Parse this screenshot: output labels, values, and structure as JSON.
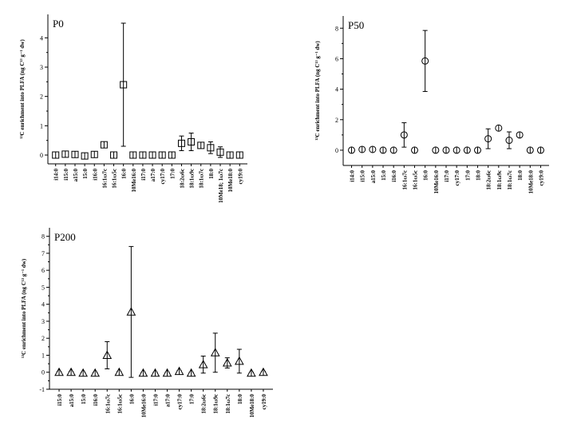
{
  "chart_data": [
    {
      "type": "scatter",
      "title": "P0",
      "marker": "square",
      "ylabel": "¹³C enrichment into PLFA (ng C¹³ g⁻¹ dw)",
      "ylim": [
        -0.3,
        4.8
      ],
      "yticks": [
        0,
        1,
        2,
        3,
        4
      ],
      "categories": [
        "i14:0",
        "i15:0",
        "a15:0",
        "15:0",
        "i16:0",
        "16:1ω7c",
        "16:1ω5c",
        "16:0",
        "10Me16:0",
        "i17:0",
        "a17:0",
        "cy17:0",
        "17:0",
        "18:2ω6c",
        "18:1ω9c",
        "18:1ω7c",
        "18:0",
        "10Me18; 1ω7c",
        "10Me18:0",
        "cy19:0"
      ],
      "values": [
        0.0,
        0.03,
        0.02,
        -0.03,
        0.02,
        0.35,
        0.0,
        2.4,
        0.0,
        0.0,
        0.0,
        0.0,
        0.0,
        0.4,
        0.45,
        0.33,
        0.25,
        0.1,
        0.0,
        0.0
      ],
      "errors": [
        0.03,
        0.04,
        0.04,
        0.03,
        0.04,
        0.1,
        0.02,
        2.1,
        0.02,
        0.02,
        0.02,
        0.02,
        0.02,
        0.25,
        0.3,
        0.1,
        0.2,
        0.18,
        0.03,
        0.03
      ]
    },
    {
      "type": "scatter",
      "title": "P50",
      "marker": "circle",
      "ylabel": "¹³C enrichment into PLFA (ng C¹³ g⁻¹ dw)",
      "ylim": [
        -1,
        8.8
      ],
      "yticks": [
        0,
        2,
        4,
        6,
        8
      ],
      "categories": [
        "i14:0",
        "i15:0",
        "a15:0",
        "15:0",
        "i16:0",
        "16:1ω7c",
        "16:1ω5c",
        "16:0",
        "10Me16:0",
        "i17:0",
        "cy17:0",
        "17:0",
        "18:0",
        "18:2ω6c",
        "18:1ω9c",
        "18:1ω7c",
        "18:0",
        "10Me18:0",
        "cy19:0"
      ],
      "values": [
        0.0,
        0.05,
        0.05,
        0.0,
        0.0,
        1.0,
        0.0,
        5.85,
        0.0,
        0.0,
        0.0,
        0.0,
        0.0,
        0.75,
        1.45,
        0.65,
        1.0,
        0.0,
        0.0
      ],
      "errors": [
        0.05,
        0.08,
        0.08,
        0.05,
        0.05,
        0.8,
        0.05,
        2.0,
        0.05,
        0.05,
        0.05,
        0.05,
        0.05,
        0.65,
        0.12,
        0.55,
        0.1,
        0.05,
        0.05
      ]
    },
    {
      "type": "scatter",
      "title": "P200",
      "marker": "triangle",
      "ylabel": "¹³C enrichment into PLFA (ng C¹³ g⁻¹ dw)",
      "ylim": [
        -1,
        8.5
      ],
      "yticks": [
        -1,
        0,
        1,
        2,
        3,
        4,
        5,
        6,
        7,
        8
      ],
      "categories": [
        "i15:0",
        "a15:0",
        "15:0",
        "i16:0",
        "16:1ω7c",
        "16:1ω5c",
        "16:0",
        "10Me16:0",
        "i17:0",
        "a17:0",
        "cy17:0",
        "17:0",
        "18:2ω6c",
        "18:1ω9c",
        "18:1ω7c",
        "18:0",
        "10Me18:0",
        "cy19:0"
      ],
      "values": [
        0.0,
        0.0,
        -0.05,
        -0.05,
        1.0,
        0.0,
        3.55,
        -0.05,
        -0.05,
        -0.05,
        0.05,
        -0.05,
        0.45,
        1.15,
        0.55,
        0.65,
        -0.05,
        0.0
      ],
      "errors": [
        0.05,
        0.05,
        0.05,
        0.05,
        0.8,
        0.05,
        3.85,
        0.05,
        0.05,
        0.05,
        0.05,
        0.05,
        0.5,
        1.15,
        0.3,
        0.7,
        0.05,
        0.05
      ]
    }
  ]
}
